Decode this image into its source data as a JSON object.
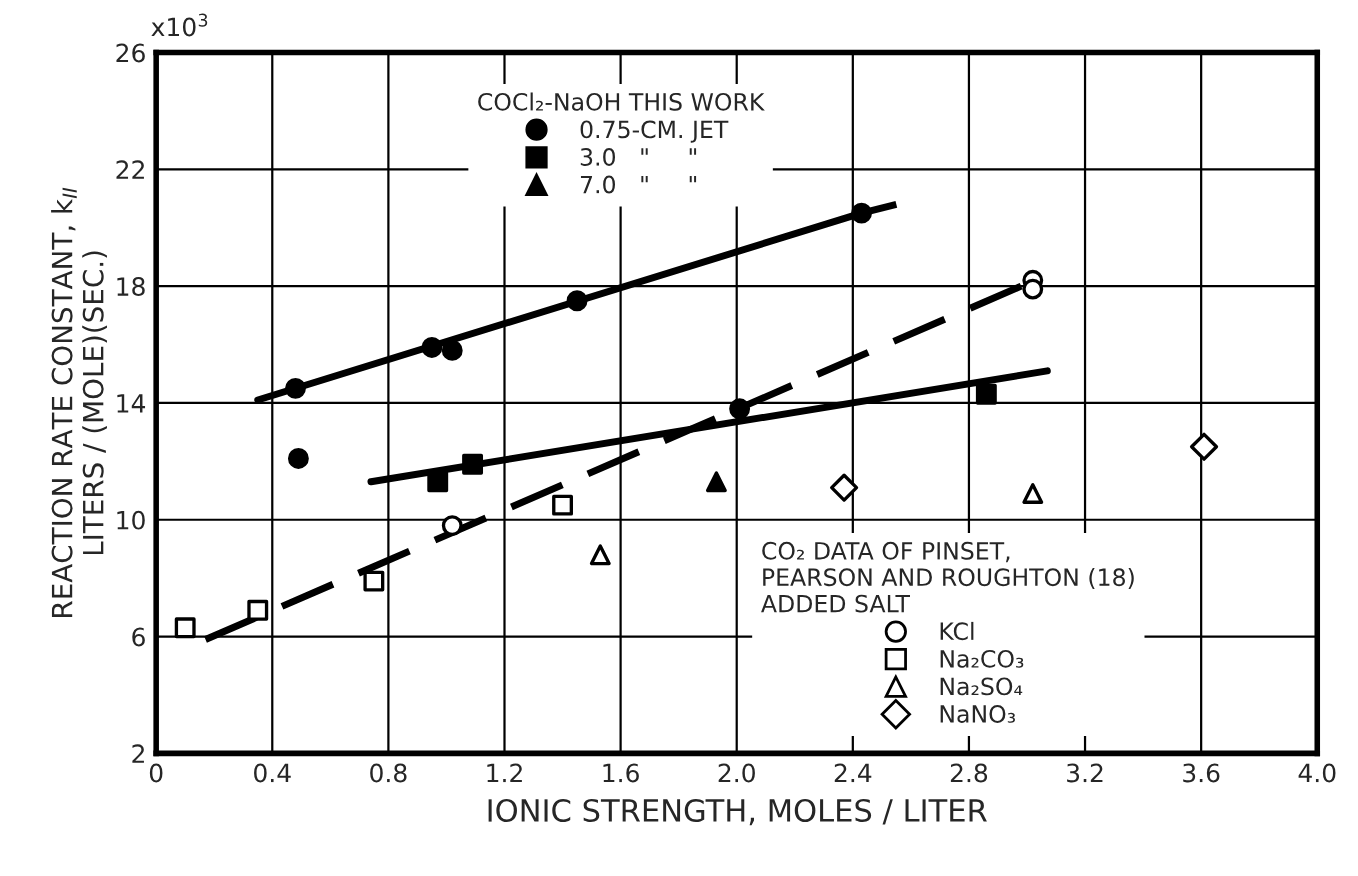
{
  "chart_data": {
    "type": "scatter",
    "xlabel": "IONIC STRENGTH, MOLES / LITER",
    "ylabel": "REACTION RATE CONSTANT, k$_{II}$\nLITERS / (MOLE)(SEC.)",
    "annotations": [
      "x10$^{3}$"
    ],
    "xlim": [
      0,
      4.0
    ],
    "ylim": [
      2,
      26
    ],
    "xticks": [
      0,
      {
        "value": 0.4,
        "label": "0.4"
      },
      {
        "value": 0.8,
        "label": "0.8"
      },
      {
        "value": 1.2,
        "label": "1.2"
      },
      {
        "value": 1.6,
        "label": "1.6"
      },
      {
        "value": 2.0,
        "label": "2.0"
      },
      {
        "value": 2.4,
        "label": "2.4"
      },
      {
        "value": 2.8,
        "label": "2.8"
      },
      {
        "value": 3.2,
        "label": "3.2"
      },
      {
        "value": 3.6,
        "label": "3.6"
      },
      {
        "value": 4.0,
        "label": "4.0"
      }
    ],
    "yticks": [
      2,
      6,
      10,
      14,
      18,
      22,
      26
    ],
    "grid": true,
    "legend": [
      "top",
      "bottom right"
    ],
    "legend_title": [
      "COCl₂-NaOH THIS WORK",
      "CO₂ DATA OF PINSET,\nPEARSON AND ROUGHTON (18)\nADDED SALT"
    ],
    "series": [
      {
        "name": "0.75-CM. JET",
        "color": "#000000",
        "marker": "circle",
        "x": [
          0.48,
          0.49,
          0.95,
          1.02,
          1.45,
          2.01,
          2.43
        ],
        "values": [
          14.5,
          12.1,
          15.9,
          15.8,
          17.5,
          13.8,
          20.5
        ]
      },
      {
        "name": "3.0   \"     \"",
        "color": "#000000",
        "marker": "square",
        "x": [
          0.97,
          1.09,
          2.86
        ],
        "values": [
          11.3,
          11.9,
          14.3
        ]
      },
      {
        "name": "7.0   \"     \"",
        "color": "#000000",
        "marker": "triangle",
        "x": [
          1.93
        ],
        "values": [
          11.3
        ]
      },
      {
        "name": "KCl",
        "color": "#000000",
        "marker": "circle",
        "x": [
          1.02,
          3.02,
          3.02
        ],
        "values": [
          9.8,
          18.2,
          17.9
        ]
      },
      {
        "name": "Na₂CO₃",
        "color": "#000000",
        "marker": "square",
        "x": [
          0.1,
          0.35,
          0.75,
          1.4
        ],
        "values": [
          6.3,
          6.9,
          7.9,
          10.5
        ]
      },
      {
        "name": "Na₂SO₄",
        "color": "#000000",
        "marker": "triangle",
        "x": [
          1.53,
          3.02
        ],
        "values": [
          8.8,
          10.9
        ]
      },
      {
        "name": "NaNO₃",
        "color": "#000000",
        "marker": "diamond",
        "x": [
          2.37,
          3.61
        ],
        "values": [
          11.1,
          12.5
        ]
      },
      {
        "type": "line",
        "color": "#000000",
        "line_style": "solid",
        "x": [
          0.35,
          2.43
        ],
        "values": [
          14.1,
          20.5
        ]
      },
      {
        "type": "line",
        "color": "#000000",
        "line_style": "dashed",
        "x": [
          2.43,
          2.55
        ],
        "values": [
          20.5,
          20.8
        ]
      },
      {
        "type": "line",
        "color": "#000000",
        "line_style": "solid",
        "x": [
          0.74,
          3.07
        ],
        "values": [
          11.3,
          15.1
        ]
      },
      {
        "type": "line",
        "color": "#000000",
        "line_style": "dashed",
        "x": [
          0.17,
          2.98
        ],
        "values": [
          5.9,
          18.0
        ]
      }
    ]
  }
}
